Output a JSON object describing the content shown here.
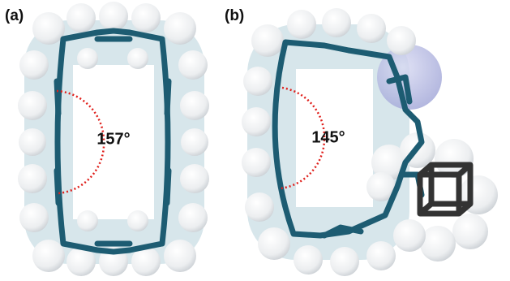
{
  "panels": [
    {
      "label": "(a)",
      "angle": "157°"
    },
    {
      "label": "(b)",
      "angle": "145°"
    }
  ]
}
